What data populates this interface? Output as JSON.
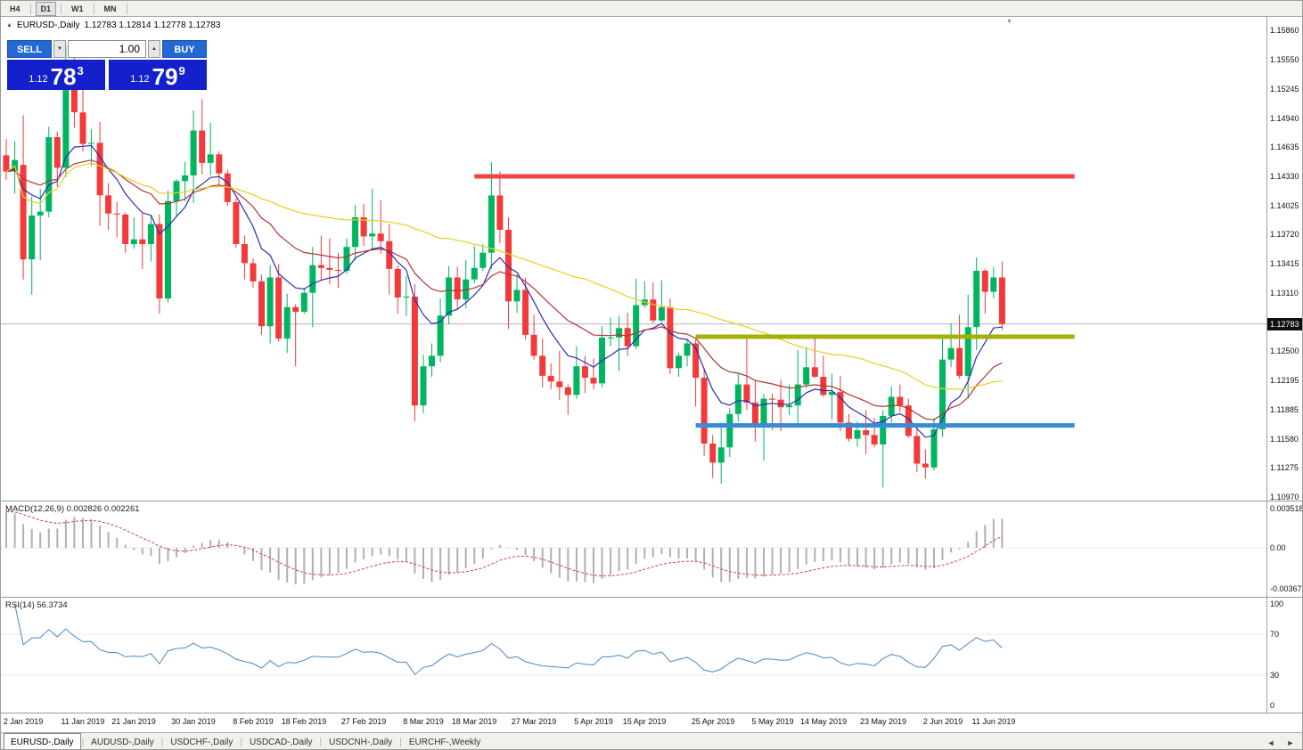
{
  "toolbar": {
    "timeframes": [
      "H4",
      "D1",
      "W1",
      "MN"
    ],
    "active": "D1"
  },
  "chart": {
    "symbol": "EURUSD-,Daily",
    "ohlc_text": "1.12783 1.12814 1.12778 1.12783"
  },
  "trade_panel": {
    "sell_label": "SELL",
    "buy_label": "BUY",
    "volume": "1.00",
    "bid": {
      "prefix": "1.12",
      "big": "78",
      "sup": "3"
    },
    "ask": {
      "prefix": "1.12",
      "big": "79",
      "sup": "9"
    },
    "button_color": "#2468d4",
    "price_color": "#1420cb"
  },
  "indicators": {
    "macd_label": "MACD(12,26,9) 0.002826 0.002261",
    "rsi_label": "RSI(14) 56.3734"
  },
  "icons": {
    "symbol_marker": "▲",
    "shift_marker": "▼",
    "spin_up": "▲",
    "spin_down": "▼",
    "scroll_left": "◄",
    "scroll_right": "►"
  },
  "tabs": [
    {
      "label": "EURUSD-,Daily",
      "active": true
    },
    {
      "label": "AUDUSD-,Daily",
      "active": false
    },
    {
      "label": "USDCHF-,Daily",
      "active": false
    },
    {
      "label": "USDCAD-,Daily",
      "active": false
    },
    {
      "label": "USDCNH-,Daily",
      "active": false
    },
    {
      "label": "EURCHF-,Weekly",
      "active": false
    }
  ],
  "chart_data": {
    "type": "candlestick",
    "symbol": "EURUSD",
    "timeframe": "Daily",
    "price_range": [
      1.1097,
      1.1586
    ],
    "current_price": "1.12783",
    "up_color": "#00b560",
    "down_color": "#f23a3a",
    "price_axis": [
      "1.15860",
      "1.15550",
      "1.15245",
      "1.14940",
      "1.14635",
      "1.14330",
      "1.14025",
      "1.13720",
      "1.13415",
      "1.13110",
      "1.12500",
      "1.12195",
      "1.11885",
      "1.11580",
      "1.11275",
      "1.10970"
    ],
    "time_ticks": [
      {
        "i": 2,
        "label": "2 Jan 2019"
      },
      {
        "i": 9,
        "label": "11 Jan 2019"
      },
      {
        "i": 15,
        "label": "21 Jan 2019"
      },
      {
        "i": 22,
        "label": "30 Jan 2019"
      },
      {
        "i": 29,
        "label": "8 Feb 2019"
      },
      {
        "i": 35,
        "label": "18 Feb 2019"
      },
      {
        "i": 42,
        "label": "27 Feb 2019"
      },
      {
        "i": 49,
        "label": "8 Mar 2019"
      },
      {
        "i": 55,
        "label": "18 Mar 2019"
      },
      {
        "i": 62,
        "label": "27 Mar 2019"
      },
      {
        "i": 69,
        "label": "5 Apr 2019"
      },
      {
        "i": 75,
        "label": "15 Apr 2019"
      },
      {
        "i": 83,
        "label": "25 Apr 2019"
      },
      {
        "i": 90,
        "label": "5 May 2019"
      },
      {
        "i": 96,
        "label": "14 May 2019"
      },
      {
        "i": 103,
        "label": "23 May 2019"
      },
      {
        "i": 110,
        "label": "2 Jun 2019"
      },
      {
        "i": 116,
        "label": "11 Jun 2019"
      }
    ],
    "levels": [
      {
        "name": "resistance-line",
        "price": 1.1433,
        "from": 55,
        "to": 125.5,
        "color": "#f04545"
      },
      {
        "name": "mid-level-line",
        "price": 1.1265,
        "from": 81,
        "to": 125.5,
        "color": "#a2b007"
      },
      {
        "name": "support-line",
        "price": 1.1172,
        "from": 81,
        "to": 125.5,
        "color": "#3a8ad6"
      }
    ],
    "moving_averages": [
      {
        "period": 8,
        "type": "ema",
        "color": "#2b2bb5"
      },
      {
        "period": 20,
        "type": "ema",
        "color": "#b03535"
      },
      {
        "period": 50,
        "type": "sma",
        "color": "#e6cf1e"
      }
    ],
    "macd": {
      "params": [
        12,
        26,
        9
      ],
      "value": 0.002826,
      "signal": 0.002261,
      "axis": [
        "0.003518",
        "0.00",
        "-0.00367"
      ],
      "hist_color": "#b0b0b0",
      "signal_color": "#d84040"
    },
    "rsi": {
      "period": 14,
      "value": 56.3734,
      "axis": [
        "100",
        "70",
        "30",
        "0"
      ],
      "levels": [
        70,
        30
      ],
      "line_color": "#4a86c8"
    },
    "candles": [
      [
        1.1455,
        1.1472,
        1.1429,
        1.1438
      ],
      [
        1.1438,
        1.147,
        1.1415,
        1.145
      ],
      [
        1.1445,
        1.1497,
        1.1325,
        1.1346
      ],
      [
        1.1346,
        1.1412,
        1.1309,
        1.1392
      ],
      [
        1.1392,
        1.142,
        1.1345,
        1.1396
      ],
      [
        1.1396,
        1.1485,
        1.139,
        1.1474
      ],
      [
        1.1474,
        1.148,
        1.1422,
        1.1442
      ],
      [
        1.1442,
        1.157,
        1.1432,
        1.1542
      ],
      [
        1.1542,
        1.157,
        1.1484,
        1.15
      ],
      [
        1.15,
        1.1541,
        1.1459,
        1.1467
      ],
      [
        1.1467,
        1.1482,
        1.1444,
        1.1468
      ],
      [
        1.1468,
        1.149,
        1.1381,
        1.1413
      ],
      [
        1.1413,
        1.1426,
        1.1377,
        1.1394
      ],
      [
        1.1394,
        1.1406,
        1.1369,
        1.1393
      ],
      [
        1.1393,
        1.1395,
        1.1353,
        1.1362
      ],
      [
        1.1362,
        1.139,
        1.1357,
        1.1367
      ],
      [
        1.1367,
        1.1394,
        1.1336,
        1.1362
      ],
      [
        1.1362,
        1.1392,
        1.1344,
        1.1383
      ],
      [
        1.1383,
        1.1393,
        1.1289,
        1.1305
      ],
      [
        1.1305,
        1.1418,
        1.1301,
        1.1407
      ],
      [
        1.1407,
        1.143,
        1.139,
        1.1428
      ],
      [
        1.1428,
        1.1448,
        1.1407,
        1.1434
      ],
      [
        1.1434,
        1.1502,
        1.1405,
        1.1481
      ],
      [
        1.1481,
        1.1514,
        1.1435,
        1.1447
      ],
      [
        1.1447,
        1.1489,
        1.1434,
        1.1456
      ],
      [
        1.1456,
        1.1459,
        1.1424,
        1.1436
      ],
      [
        1.1436,
        1.144,
        1.1402,
        1.1406
      ],
      [
        1.1406,
        1.141,
        1.1358,
        1.1362
      ],
      [
        1.1362,
        1.1371,
        1.1325,
        1.1342
      ],
      [
        1.1342,
        1.1347,
        1.1316,
        1.1323
      ],
      [
        1.1323,
        1.133,
        1.1267,
        1.1276
      ],
      [
        1.1276,
        1.134,
        1.1258,
        1.1327
      ],
      [
        1.1327,
        1.1341,
        1.126,
        1.1263
      ],
      [
        1.1263,
        1.131,
        1.1248,
        1.1296
      ],
      [
        1.1296,
        1.1299,
        1.1234,
        1.1291
      ],
      [
        1.1291,
        1.1316,
        1.1289,
        1.1311
      ],
      [
        1.1311,
        1.1359,
        1.1275,
        1.134
      ],
      [
        1.134,
        1.1371,
        1.1324,
        1.1337
      ],
      [
        1.1337,
        1.1368,
        1.132,
        1.1335
      ],
      [
        1.1335,
        1.1353,
        1.1316,
        1.1334
      ],
      [
        1.1334,
        1.1368,
        1.1331,
        1.1359
      ],
      [
        1.1359,
        1.1403,
        1.1345,
        1.139
      ],
      [
        1.139,
        1.1404,
        1.136,
        1.137
      ],
      [
        1.137,
        1.142,
        1.1355,
        1.1373
      ],
      [
        1.1373,
        1.1408,
        1.1352,
        1.1365
      ],
      [
        1.1365,
        1.1383,
        1.1309,
        1.1336
      ],
      [
        1.1336,
        1.134,
        1.1289,
        1.1306
      ],
      [
        1.1306,
        1.1329,
        1.1287,
        1.1307
      ],
      [
        1.1307,
        1.132,
        1.1176,
        1.1193
      ],
      [
        1.1193,
        1.1246,
        1.1185,
        1.1234
      ],
      [
        1.1234,
        1.1258,
        1.1223,
        1.1245
      ],
      [
        1.1245,
        1.1305,
        1.1238,
        1.1287
      ],
      [
        1.1287,
        1.1339,
        1.1278,
        1.1327
      ],
      [
        1.1327,
        1.1338,
        1.1294,
        1.1304
      ],
      [
        1.1304,
        1.1345,
        1.1295,
        1.1325
      ],
      [
        1.1325,
        1.136,
        1.1321,
        1.1337
      ],
      [
        1.1337,
        1.1362,
        1.1334,
        1.1353
      ],
      [
        1.1353,
        1.1448,
        1.1336,
        1.1413
      ],
      [
        1.1413,
        1.1438,
        1.1363,
        1.1377
      ],
      [
        1.1377,
        1.139,
        1.1273,
        1.1302
      ],
      [
        1.1302,
        1.133,
        1.129,
        1.1314
      ],
      [
        1.1314,
        1.1327,
        1.1262,
        1.1267
      ],
      [
        1.1267,
        1.1288,
        1.1241,
        1.1245
      ],
      [
        1.1245,
        1.1263,
        1.1212,
        1.1224
      ],
      [
        1.1224,
        1.1237,
        1.121,
        1.1218
      ],
      [
        1.1218,
        1.125,
        1.1199,
        1.1212
      ],
      [
        1.1212,
        1.1215,
        1.1183,
        1.1204
      ],
      [
        1.1204,
        1.1255,
        1.12,
        1.1234
      ],
      [
        1.1234,
        1.1245,
        1.1206,
        1.1222
      ],
      [
        1.1222,
        1.1242,
        1.121,
        1.1216
      ],
      [
        1.1216,
        1.1276,
        1.1212,
        1.1264
      ],
      [
        1.1264,
        1.1285,
        1.1255,
        1.1264
      ],
      [
        1.1264,
        1.1287,
        1.1229,
        1.1274
      ],
      [
        1.1274,
        1.129,
        1.1245,
        1.1255
      ],
      [
        1.1255,
        1.1326,
        1.1252,
        1.1298
      ],
      [
        1.1298,
        1.1323,
        1.1295,
        1.1304
      ],
      [
        1.1304,
        1.1322,
        1.1279,
        1.1282
      ],
      [
        1.1282,
        1.1324,
        1.128,
        1.1296
      ],
      [
        1.1296,
        1.1305,
        1.1226,
        1.1232
      ],
      [
        1.1232,
        1.1248,
        1.1223,
        1.1245
      ],
      [
        1.1245,
        1.1262,
        1.1234,
        1.1258
      ],
      [
        1.1258,
        1.1262,
        1.1192,
        1.1222
      ],
      [
        1.1222,
        1.123,
        1.114,
        1.1153
      ],
      [
        1.1153,
        1.1162,
        1.1117,
        1.1133
      ],
      [
        1.1133,
        1.1175,
        1.1111,
        1.1149
      ],
      [
        1.1149,
        1.119,
        1.1139,
        1.1184
      ],
      [
        1.1184,
        1.1226,
        1.1176,
        1.1215
      ],
      [
        1.1215,
        1.1265,
        1.1188,
        1.1196
      ],
      [
        1.1196,
        1.1219,
        1.1155,
        1.1174
      ],
      [
        1.1174,
        1.1205,
        1.1135,
        1.12
      ],
      [
        1.12,
        1.1205,
        1.1167,
        1.1199
      ],
      [
        1.1199,
        1.122,
        1.1166,
        1.1191
      ],
      [
        1.1191,
        1.1215,
        1.1183,
        1.1193
      ],
      [
        1.1193,
        1.1251,
        1.1174,
        1.1215
      ],
      [
        1.1215,
        1.1254,
        1.1211,
        1.1233
      ],
      [
        1.1233,
        1.1264,
        1.1222,
        1.1223
      ],
      [
        1.1223,
        1.1245,
        1.1202,
        1.1204
      ],
      [
        1.1204,
        1.1226,
        1.1178,
        1.1207
      ],
      [
        1.1207,
        1.1224,
        1.1166,
        1.1175
      ],
      [
        1.1175,
        1.1184,
        1.1155,
        1.1158
      ],
      [
        1.1158,
        1.1176,
        1.115,
        1.1167
      ],
      [
        1.1167,
        1.1188,
        1.1142,
        1.1162
      ],
      [
        1.1162,
        1.118,
        1.1149,
        1.1152
      ],
      [
        1.1152,
        1.1188,
        1.1107,
        1.1182
      ],
      [
        1.1182,
        1.1213,
        1.1175,
        1.1202
      ],
      [
        1.1202,
        1.1215,
        1.1186,
        1.1193
      ],
      [
        1.1193,
        1.12,
        1.1159,
        1.1161
      ],
      [
        1.1161,
        1.1172,
        1.1123,
        1.1132
      ],
      [
        1.1132,
        1.1147,
        1.1116,
        1.1128
      ],
      [
        1.1128,
        1.118,
        1.1125,
        1.1168
      ],
      [
        1.1168,
        1.1263,
        1.116,
        1.1241
      ],
      [
        1.1241,
        1.1279,
        1.1233,
        1.1253
      ],
      [
        1.1253,
        1.1288,
        1.1221,
        1.1224
      ],
      [
        1.1224,
        1.1309,
        1.12,
        1.1275
      ],
      [
        1.1275,
        1.1348,
        1.1251,
        1.1334
      ],
      [
        1.1334,
        1.1336,
        1.1289,
        1.1312
      ],
      [
        1.1312,
        1.1338,
        1.1305,
        1.1327
      ],
      [
        1.1327,
        1.1344,
        1.1272,
        1.12783
      ]
    ]
  }
}
